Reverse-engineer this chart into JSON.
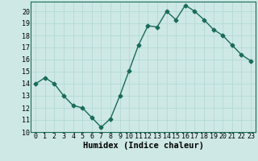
{
  "x": [
    0,
    1,
    2,
    3,
    4,
    5,
    6,
    7,
    8,
    9,
    10,
    11,
    12,
    13,
    14,
    15,
    16,
    17,
    18,
    19,
    20,
    21,
    22,
    23
  ],
  "y": [
    14.0,
    14.5,
    14.0,
    13.0,
    12.2,
    12.0,
    11.2,
    10.4,
    11.1,
    13.0,
    15.1,
    17.2,
    18.8,
    18.7,
    20.0,
    19.3,
    20.5,
    20.0,
    19.3,
    18.5,
    18.0,
    17.2,
    16.4,
    15.9
  ],
  "xlabel": "Humidex (Indice chaleur)",
  "xlim": [
    -0.5,
    23.5
  ],
  "ylim": [
    10,
    20.8
  ],
  "yticks": [
    10,
    11,
    12,
    13,
    14,
    15,
    16,
    17,
    18,
    19,
    20
  ],
  "xticks": [
    0,
    1,
    2,
    3,
    4,
    5,
    6,
    7,
    8,
    9,
    10,
    11,
    12,
    13,
    14,
    15,
    16,
    17,
    18,
    19,
    20,
    21,
    22,
    23
  ],
  "line_color": "#1a6b5a",
  "marker": "D",
  "marker_size": 2.5,
  "bg_color": "#cde8e5",
  "grid_color": "#b0d8d4",
  "xlabel_fontsize": 7.5,
  "tick_fontsize": 6,
  "line_width": 1.0
}
